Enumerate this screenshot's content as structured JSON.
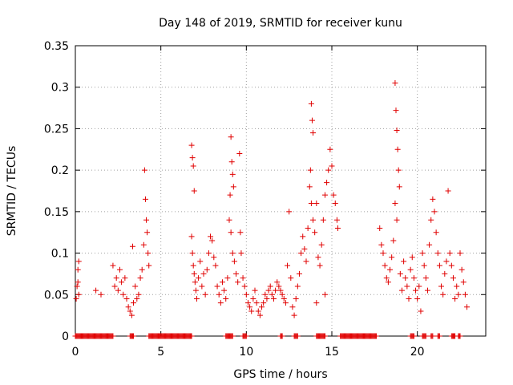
{
  "chart_data": {
    "type": "scatter",
    "title": "Day 148 of 2019, SRMTID for receiver kunu",
    "xlabel": "GPS time / hours",
    "ylabel": "SRMTID / TECUs",
    "xlim": [
      0,
      24
    ],
    "ylim": [
      0,
      0.35
    ],
    "x_ticks": [
      0,
      5,
      10,
      15,
      20
    ],
    "x_tick_labels": [
      "0",
      "5",
      "10",
      "15",
      "20"
    ],
    "y_ticks": [
      0,
      0.05,
      0.1,
      0.15,
      0.2,
      0.25,
      0.3,
      0.35
    ],
    "y_tick_labels": [
      "0",
      "0.05",
      "0.1",
      "0.15",
      "0.2",
      "0.25",
      "0.3",
      "0.35"
    ],
    "grid": true,
    "marker": "+",
    "marker_color": "#e00000",
    "series": [
      {
        "name": "SRMTID",
        "points": [
          [
            0.05,
            0.045
          ],
          [
            0.1,
            0.06
          ],
          [
            0.15,
            0.065
          ],
          [
            0.15,
            0.08
          ],
          [
            0.2,
            0.09
          ],
          [
            0.2,
            0.05
          ],
          [
            1.2,
            0.055
          ],
          [
            1.5,
            0.05
          ],
          [
            2.2,
            0.085
          ],
          [
            2.3,
            0.06
          ],
          [
            2.4,
            0.07
          ],
          [
            2.5,
            0.055
          ],
          [
            2.6,
            0.08
          ],
          [
            2.7,
            0.065
          ],
          [
            2.8,
            0.05
          ],
          [
            2.9,
            0.07
          ],
          [
            3.0,
            0.045
          ],
          [
            3.1,
            0.035
          ],
          [
            3.2,
            0.03
          ],
          [
            3.3,
            0.025
          ],
          [
            3.4,
            0.04
          ],
          [
            3.5,
            0.06
          ],
          [
            3.6,
            0.045
          ],
          [
            3.7,
            0.05
          ],
          [
            3.8,
            0.07
          ],
          [
            3.9,
            0.08
          ],
          [
            4.0,
            0.11
          ],
          [
            4.05,
            0.2
          ],
          [
            4.1,
            0.165
          ],
          [
            4.15,
            0.14
          ],
          [
            4.2,
            0.125
          ],
          [
            4.25,
            0.1
          ],
          [
            4.3,
            0.085
          ],
          [
            3.35,
            0.108
          ],
          [
            6.8,
            0.23
          ],
          [
            6.85,
            0.215
          ],
          [
            6.9,
            0.205
          ],
          [
            6.95,
            0.175
          ],
          [
            6.8,
            0.12
          ],
          [
            6.85,
            0.1
          ],
          [
            6.9,
            0.085
          ],
          [
            6.95,
            0.075
          ],
          [
            7.0,
            0.065
          ],
          [
            7.05,
            0.055
          ],
          [
            7.1,
            0.045
          ],
          [
            7.2,
            0.07
          ],
          [
            7.3,
            0.09
          ],
          [
            7.4,
            0.06
          ],
          [
            7.5,
            0.075
          ],
          [
            7.6,
            0.05
          ],
          [
            7.7,
            0.08
          ],
          [
            7.8,
            0.1
          ],
          [
            7.9,
            0.12
          ],
          [
            8.0,
            0.115
          ],
          [
            8.1,
            0.095
          ],
          [
            8.2,
            0.085
          ],
          [
            8.3,
            0.06
          ],
          [
            8.4,
            0.05
          ],
          [
            8.5,
            0.04
          ],
          [
            8.6,
            0.065
          ],
          [
            8.7,
            0.055
          ],
          [
            8.8,
            0.045
          ],
          [
            8.9,
            0.07
          ],
          [
            9.0,
            0.14
          ],
          [
            9.05,
            0.17
          ],
          [
            9.1,
            0.24
          ],
          [
            9.15,
            0.21
          ],
          [
            9.2,
            0.195
          ],
          [
            9.25,
            0.18
          ],
          [
            9.1,
            0.125
          ],
          [
            9.2,
            0.1
          ],
          [
            9.3,
            0.09
          ],
          [
            9.4,
            0.075
          ],
          [
            9.5,
            0.065
          ],
          [
            9.6,
            0.22
          ],
          [
            9.65,
            0.125
          ],
          [
            9.7,
            0.1
          ],
          [
            9.8,
            0.07
          ],
          [
            9.9,
            0.06
          ],
          [
            10.0,
            0.05
          ],
          [
            10.1,
            0.04
          ],
          [
            10.2,
            0.035
          ],
          [
            10.3,
            0.03
          ],
          [
            10.4,
            0.045
          ],
          [
            10.5,
            0.055
          ],
          [
            10.6,
            0.04
          ],
          [
            10.7,
            0.03
          ],
          [
            10.8,
            0.025
          ],
          [
            10.9,
            0.035
          ],
          [
            11.0,
            0.04
          ],
          [
            11.1,
            0.05
          ],
          [
            11.2,
            0.045
          ],
          [
            11.3,
            0.055
          ],
          [
            11.4,
            0.06
          ],
          [
            11.5,
            0.05
          ],
          [
            11.6,
            0.045
          ],
          [
            11.7,
            0.055
          ],
          [
            11.8,
            0.065
          ],
          [
            11.9,
            0.06
          ],
          [
            12.0,
            0.055
          ],
          [
            12.1,
            0.05
          ],
          [
            12.2,
            0.045
          ],
          [
            12.3,
            0.04
          ],
          [
            12.4,
            0.085
          ],
          [
            12.5,
            0.15
          ],
          [
            12.6,
            0.07
          ],
          [
            12.7,
            0.035
          ],
          [
            12.8,
            0.025
          ],
          [
            12.9,
            0.045
          ],
          [
            13.0,
            0.06
          ],
          [
            13.1,
            0.075
          ],
          [
            13.2,
            0.1
          ],
          [
            13.3,
            0.12
          ],
          [
            13.4,
            0.105
          ],
          [
            13.5,
            0.09
          ],
          [
            13.6,
            0.13
          ],
          [
            13.7,
            0.18
          ],
          [
            13.75,
            0.2
          ],
          [
            13.8,
            0.28
          ],
          [
            13.85,
            0.26
          ],
          [
            13.9,
            0.245
          ],
          [
            13.8,
            0.16
          ],
          [
            13.9,
            0.14
          ],
          [
            14.0,
            0.125
          ],
          [
            14.1,
            0.16
          ],
          [
            14.2,
            0.095
          ],
          [
            14.3,
            0.085
          ],
          [
            14.4,
            0.11
          ],
          [
            14.5,
            0.14
          ],
          [
            14.6,
            0.17
          ],
          [
            14.7,
            0.185
          ],
          [
            14.8,
            0.2
          ],
          [
            14.9,
            0.225
          ],
          [
            15.0,
            0.205
          ],
          [
            15.1,
            0.17
          ],
          [
            15.2,
            0.16
          ],
          [
            15.3,
            0.14
          ],
          [
            15.35,
            0.13
          ],
          [
            14.1,
            0.04
          ],
          [
            14.6,
            0.05
          ],
          [
            17.8,
            0.13
          ],
          [
            17.9,
            0.11
          ],
          [
            18.0,
            0.1
          ],
          [
            18.1,
            0.085
          ],
          [
            18.2,
            0.07
          ],
          [
            18.3,
            0.065
          ],
          [
            18.4,
            0.08
          ],
          [
            18.5,
            0.095
          ],
          [
            18.6,
            0.115
          ],
          [
            18.7,
            0.305
          ],
          [
            18.75,
            0.272
          ],
          [
            18.8,
            0.248
          ],
          [
            18.85,
            0.225
          ],
          [
            18.9,
            0.2
          ],
          [
            18.95,
            0.18
          ],
          [
            18.7,
            0.16
          ],
          [
            18.8,
            0.14
          ],
          [
            19.0,
            0.075
          ],
          [
            19.1,
            0.055
          ],
          [
            19.2,
            0.09
          ],
          [
            19.3,
            0.07
          ],
          [
            19.4,
            0.06
          ],
          [
            19.5,
            0.045
          ],
          [
            19.6,
            0.08
          ],
          [
            19.7,
            0.095
          ],
          [
            19.8,
            0.07
          ],
          [
            19.9,
            0.055
          ],
          [
            20.0,
            0.045
          ],
          [
            20.1,
            0.06
          ],
          [
            20.2,
            0.03
          ],
          [
            20.3,
            0.1
          ],
          [
            20.4,
            0.085
          ],
          [
            20.5,
            0.07
          ],
          [
            20.6,
            0.055
          ],
          [
            20.7,
            0.11
          ],
          [
            20.8,
            0.14
          ],
          [
            20.9,
            0.165
          ],
          [
            21.0,
            0.15
          ],
          [
            21.1,
            0.125
          ],
          [
            21.2,
            0.1
          ],
          [
            21.3,
            0.085
          ],
          [
            21.4,
            0.06
          ],
          [
            21.5,
            0.05
          ],
          [
            21.6,
            0.075
          ],
          [
            21.7,
            0.09
          ],
          [
            21.8,
            0.175
          ],
          [
            21.9,
            0.1
          ],
          [
            22.0,
            0.085
          ],
          [
            22.1,
            0.07
          ],
          [
            22.2,
            0.045
          ],
          [
            22.3,
            0.06
          ],
          [
            22.4,
            0.05
          ],
          [
            22.5,
            0.1
          ],
          [
            22.6,
            0.08
          ],
          [
            22.7,
            0.065
          ],
          [
            22.8,
            0.05
          ],
          [
            22.9,
            0.035
          ]
        ]
      }
    ],
    "zero_value_ranges_hours": [
      [
        0.0,
        2.2
      ],
      [
        3.2,
        3.4
      ],
      [
        4.3,
        6.8
      ],
      [
        8.8,
        9.2
      ],
      [
        9.8,
        10.0
      ],
      [
        12.0,
        12.1
      ],
      [
        12.8,
        13.0
      ],
      [
        14.1,
        14.6
      ],
      [
        15.5,
        17.6
      ],
      [
        19.6,
        19.8
      ],
      [
        20.3,
        20.5
      ],
      [
        20.8,
        20.9
      ],
      [
        21.2,
        21.3
      ],
      [
        22.0,
        22.2
      ],
      [
        22.4,
        22.5
      ]
    ]
  }
}
